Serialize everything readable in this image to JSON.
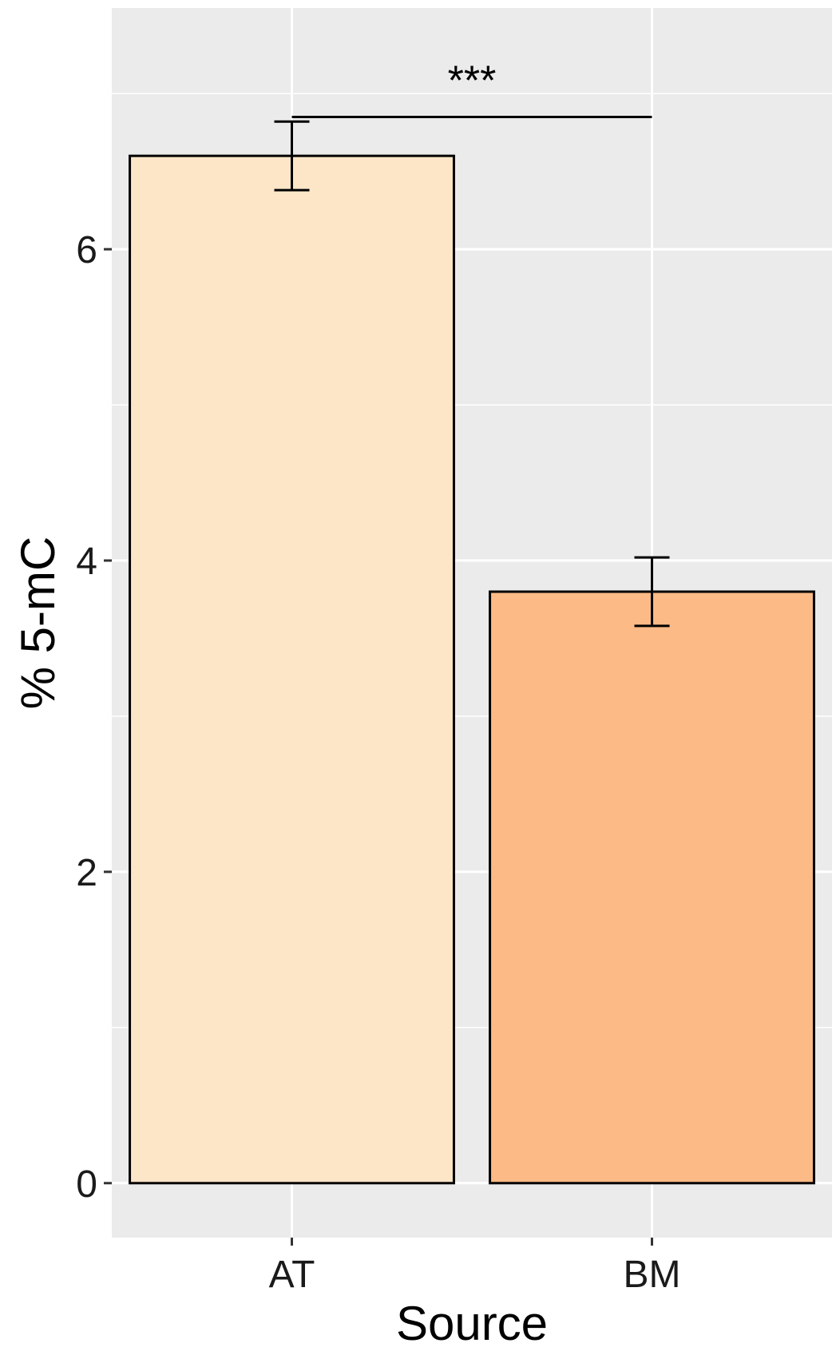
{
  "chart_data": {
    "type": "bar",
    "title": "",
    "xlabel": "Source",
    "ylabel": "% 5-mC",
    "categories": [
      "AT",
      "BM"
    ],
    "values": [
      6.6,
      3.8
    ],
    "error_bars": [
      {
        "category": "AT",
        "low": 6.38,
        "high": 6.82
      },
      {
        "category": "BM",
        "low": 3.58,
        "high": 4.02
      }
    ],
    "bar_colors": [
      "#FDE6C7",
      "#FBBA86"
    ],
    "ylim": [
      -0.35,
      7.55
    ],
    "yticks": [
      0,
      2,
      4,
      6
    ],
    "ytick_labels": [
      "0",
      "2",
      "4",
      "6"
    ],
    "grid": true,
    "panel_background": "#EBEBEB",
    "gridline_color": "#FFFFFF",
    "significance": {
      "label": "***",
      "between": [
        "AT",
        "BM"
      ],
      "y": 6.85
    }
  }
}
